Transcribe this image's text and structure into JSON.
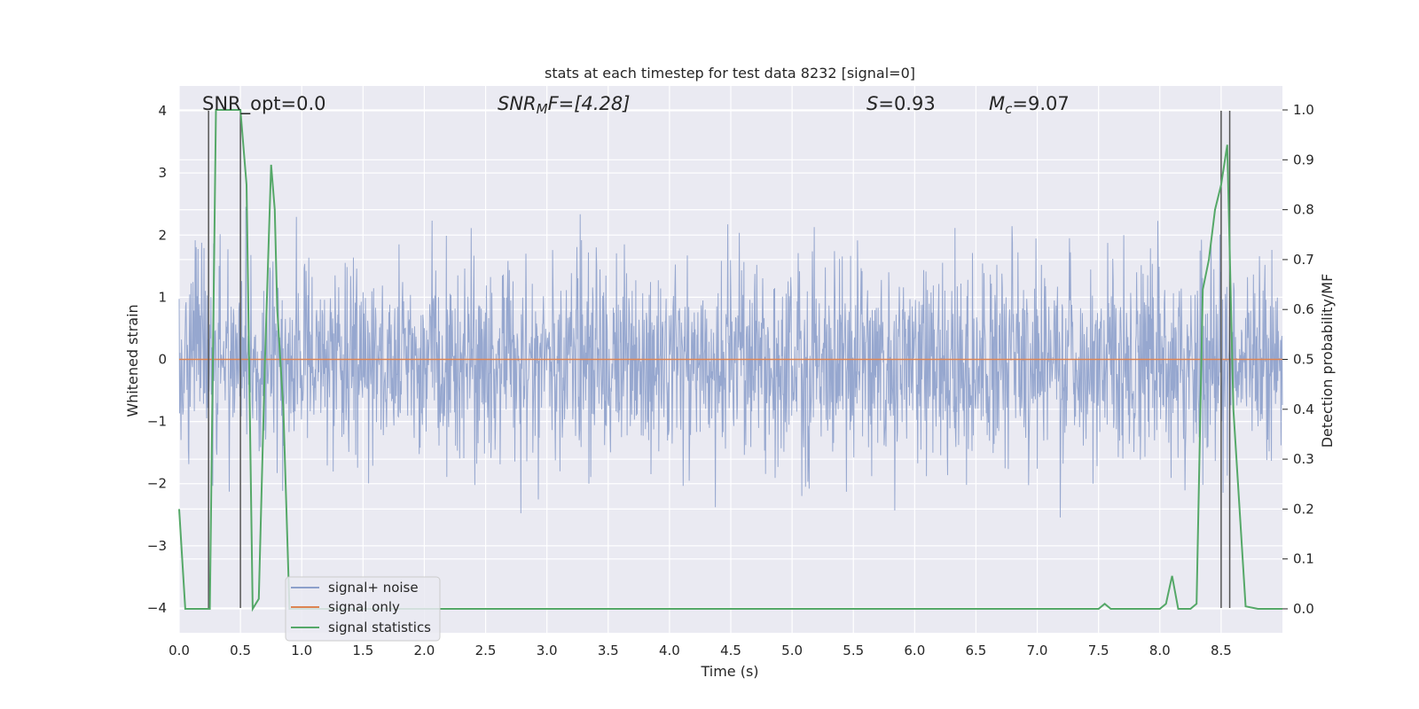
{
  "chart_data": {
    "type": "line",
    "title": "stats at each timestep for test data 8232 [signal=0]",
    "xlabel": "Time (s)",
    "ylabel": "Whitened strain",
    "y2label": "Detection probability/MF",
    "xlim": [
      0.0,
      9.0
    ],
    "ylim": [
      -4.4,
      4.4
    ],
    "y2lim": [
      -0.048,
      1.048
    ],
    "xticks": [
      "0.0",
      "0.5",
      "1.0",
      "1.5",
      "2.0",
      "2.5",
      "3.0",
      "3.5",
      "4.0",
      "4.5",
      "5.0",
      "5.5",
      "6.0",
      "6.5",
      "7.0",
      "7.5",
      "8.0",
      "8.5"
    ],
    "yticks": [
      "4",
      "3",
      "2",
      "1",
      "0",
      "−1",
      "−2",
      "−3",
      "−4"
    ],
    "y2ticks": [
      "1.0",
      "0.9",
      "0.8",
      "0.7",
      "0.6",
      "0.5",
      "0.4",
      "0.3",
      "0.2",
      "0.1",
      "0.0"
    ],
    "grid": true,
    "legend_position": "lower-left",
    "annotations": {
      "snr_opt": "SNR_opt=0.0",
      "snr_mf_prefix": "SNR",
      "snr_mf_sub": "M",
      "snr_mf_rest": "F=[4.28]",
      "s_label": "S",
      "s_value": "=0.93",
      "mc_label": "M",
      "mc_sub": "c",
      "mc_value": "=9.07"
    },
    "vertical_lines_x": [
      0.24,
      0.5,
      8.5,
      8.57
    ],
    "series": [
      {
        "name": "signal+ noise",
        "color": "#8da0cb",
        "axis": "left",
        "kind": "noise",
        "envelope_std": 0.78,
        "y_range": [
          -4.0,
          4.0
        ],
        "x_range": [
          0.0,
          9.0
        ]
      },
      {
        "name": "signal only",
        "color": "#dd8452",
        "axis": "left",
        "x": [
          0.0,
          9.0
        ],
        "y": [
          0.0,
          0.0
        ]
      },
      {
        "name": "signal statistics",
        "color": "#55a868",
        "axis": "right",
        "x": [
          0.0,
          0.05,
          0.1,
          0.2,
          0.25,
          0.3,
          0.35,
          0.4,
          0.45,
          0.5,
          0.55,
          0.6,
          0.65,
          0.7,
          0.75,
          0.78,
          0.8,
          0.85,
          0.9,
          1.0,
          1.5,
          2.0,
          2.5,
          2.7,
          2.8,
          3.0,
          3.5,
          4.0,
          4.2,
          4.3,
          5.0,
          5.5,
          6.0,
          6.5,
          7.0,
          7.5,
          7.55,
          7.6,
          7.7,
          8.0,
          8.05,
          8.1,
          8.15,
          8.25,
          8.3,
          8.35,
          8.4,
          8.45,
          8.5,
          8.55,
          8.6,
          8.7,
          8.8,
          9.0
        ],
        "y": [
          0.2,
          0.0,
          0.0,
          0.0,
          0.0,
          1.0,
          1.0,
          1.0,
          1.0,
          1.0,
          0.85,
          0.0,
          0.02,
          0.5,
          0.89,
          0.8,
          0.6,
          0.4,
          0.0,
          0.0,
          0.0,
          0.0,
          0.0,
          0.0,
          0.0,
          0.0,
          0.0,
          0.0,
          0.0,
          0.0,
          0.0,
          0.0,
          0.0,
          0.0,
          0.0,
          0.0,
          0.01,
          0.0,
          0.0,
          0.0,
          0.01,
          0.066,
          0.0,
          0.0,
          0.01,
          0.64,
          0.7,
          0.8,
          0.85,
          0.93,
          0.4,
          0.005,
          0.0,
          0.0
        ]
      }
    ]
  }
}
